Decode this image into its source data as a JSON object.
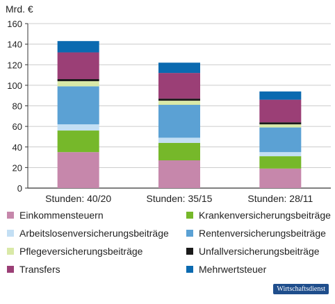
{
  "chart_data": {
    "type": "bar",
    "stacked": true,
    "ylabel": "Mrd. €",
    "ylim": [
      0,
      160
    ],
    "yticks": [
      0,
      20,
      40,
      60,
      80,
      100,
      120,
      140,
      160
    ],
    "categories": [
      "Stunden: 40/20",
      "Stunden: 35/15",
      "Stunden: 28/11"
    ],
    "series": [
      {
        "name": "Einkommensteuern",
        "color": "#c687ab",
        "values": [
          35,
          27,
          19
        ]
      },
      {
        "name": "Krankenversicherungsbeiträge",
        "color": "#76b82a",
        "values": [
          21,
          17,
          12
        ]
      },
      {
        "name": "Arbeitslosenversicherungsbeiträge",
        "color": "#c3dff4",
        "values": [
          6,
          5,
          4
        ]
      },
      {
        "name": "Rentenversicherungsbeiträge",
        "color": "#5ba1d4",
        "values": [
          37,
          32,
          24
        ]
      },
      {
        "name": "Pflegeversicherungsbeiträge",
        "color": "#d9e9a7",
        "values": [
          5,
          4,
          3
        ]
      },
      {
        "name": "Unfallversicherungsbeiträge",
        "color": "#1a1a1a",
        "values": [
          2,
          2,
          2
        ]
      },
      {
        "name": "Transfers",
        "color": "#9b3f76",
        "values": [
          26,
          25,
          22
        ]
      },
      {
        "name": "Mehrwertsteuer",
        "color": "#0b6ab0",
        "values": [
          11,
          10,
          8
        ]
      }
    ]
  },
  "badge": "Wirtschaftsdienst"
}
